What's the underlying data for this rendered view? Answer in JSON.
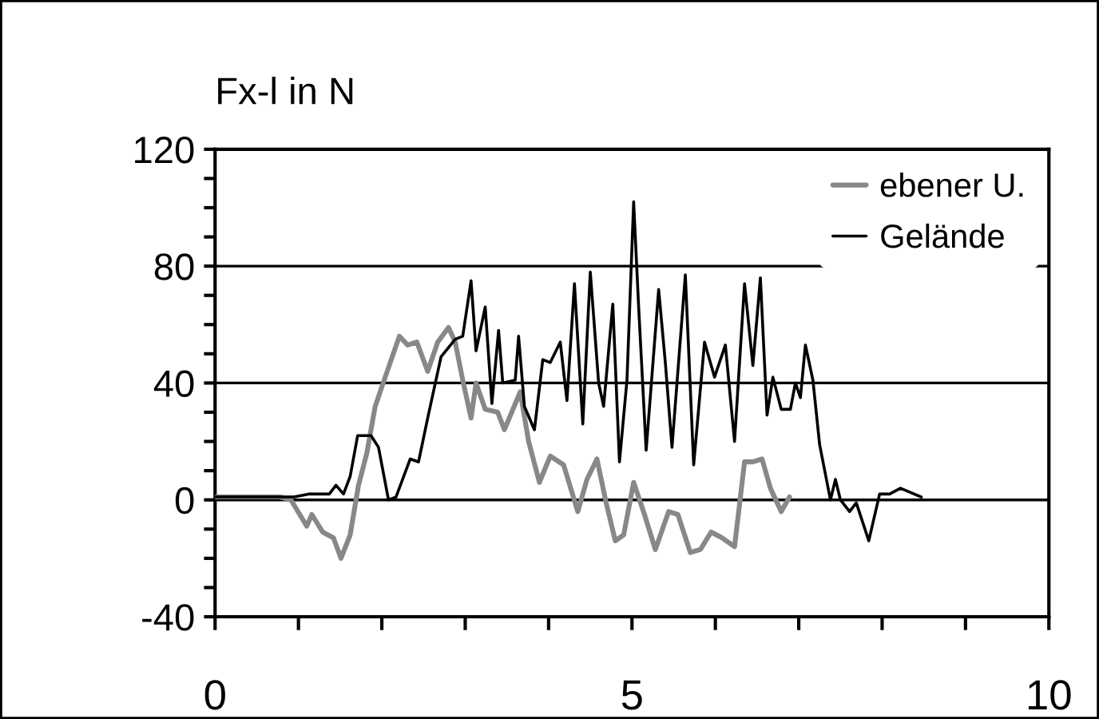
{
  "chart_data": {
    "type": "line",
    "ylabel": "Fx-l in N",
    "xlim": [
      0,
      10
    ],
    "xticks": [
      0,
      {
        "value": 1,
        "label": null
      },
      {
        "value": 2,
        "label": null
      },
      {
        "value": 3,
        "label": null
      },
      {
        "value": 4,
        "label": null
      },
      5,
      {
        "value": 6,
        "label": null
      },
      {
        "value": 7,
        "label": null
      },
      {
        "value": 8,
        "label": null
      },
      {
        "value": 9,
        "label": null
      },
      10
    ],
    "ylim": [
      -40,
      120
    ],
    "yticks": [
      -40,
      {
        "value": -30,
        "label": null
      },
      {
        "value": -20,
        "label": null
      },
      {
        "value": -10,
        "label": null
      },
      0,
      {
        "value": 10,
        "label": null
      },
      {
        "value": 20,
        "label": null
      },
      {
        "value": 30,
        "label": null
      },
      40,
      {
        "value": 50,
        "label": null
      },
      {
        "value": 60,
        "label": null
      },
      {
        "value": 70,
        "label": null
      },
      80,
      {
        "value": 90,
        "label": null
      },
      {
        "value": 100,
        "label": null
      },
      {
        "value": 110,
        "label": null
      },
      120
    ],
    "grid": "y",
    "legend": "top right",
    "series": [
      {
        "name": "ebener U.",
        "color": "#888888",
        "x": [
          0,
          0.78,
          0.91,
          1.1,
          1.16,
          1.29,
          1.42,
          1.51,
          1.62,
          1.72,
          1.82,
          1.92,
          2.04,
          2.21,
          2.31,
          2.42,
          2.55,
          2.67,
          2.8,
          2.88,
          2.97,
          3.07,
          3.13,
          3.24,
          3.39,
          3.47,
          3.66,
          3.76,
          3.89,
          4.02,
          4.18,
          4.35,
          4.46,
          4.58,
          4.69,
          4.8,
          4.9,
          5.02,
          5.15,
          5.28,
          5.44,
          5.55,
          5.7,
          5.82,
          5.95,
          6.08,
          6.23,
          6.35,
          6.45,
          6.56,
          6.66,
          6.79,
          6.89
        ],
        "values": [
          1,
          1,
          0,
          -9,
          -5,
          -11,
          -13,
          -20,
          -12,
          5,
          16,
          32,
          42,
          56,
          53,
          54,
          44,
          54,
          59,
          54,
          41,
          28,
          40,
          31,
          30,
          24,
          37,
          20,
          6,
          15,
          12,
          -4,
          7,
          14,
          -1,
          -14,
          -12,
          6,
          -5,
          -17,
          -4,
          -5,
          -18,
          -17,
          -11,
          -13,
          -16,
          13,
          13,
          14,
          4,
          -4,
          1
        ]
      },
      {
        "name": "Gelände",
        "color": "#000000",
        "x": [
          0,
          0.95,
          1.12,
          1.37,
          1.45,
          1.54,
          1.62,
          1.71,
          1.87,
          1.96,
          2.08,
          2.17,
          2.34,
          2.44,
          2.55,
          2.71,
          2.88,
          2.97,
          3.07,
          3.13,
          3.24,
          3.32,
          3.4,
          3.45,
          3.6,
          3.64,
          3.71,
          3.83,
          3.93,
          4.02,
          4.14,
          4.22,
          4.31,
          4.41,
          4.5,
          4.6,
          4.66,
          4.77,
          4.85,
          4.94,
          5.02,
          5.08,
          5.17,
          5.32,
          5.4,
          5.48,
          5.64,
          5.74,
          5.87,
          5.99,
          6.12,
          6.23,
          6.35,
          6.45,
          6.54,
          6.62,
          6.69,
          6.79,
          6.9,
          6.96,
          7.02,
          7.08,
          7.17,
          7.25,
          7.38,
          7.44,
          7.5,
          7.61,
          7.69,
          7.84,
          7.97,
          8.09,
          8.22,
          8.47
        ],
        "values": [
          1,
          1,
          2,
          2,
          5,
          2,
          8,
          22,
          22,
          18,
          0,
          1,
          14,
          13,
          28,
          49,
          55,
          56,
          75,
          51,
          66,
          33,
          58,
          40,
          41,
          56,
          32,
          24,
          48,
          47,
          54,
          34,
          74,
          26,
          78,
          40,
          32,
          67,
          13,
          41,
          102,
          66,
          17,
          72,
          47,
          18,
          77,
          12,
          54,
          42,
          53,
          20,
          74,
          46,
          76,
          29,
          42,
          31,
          31,
          40,
          35,
          53,
          41,
          19,
          0,
          7,
          0,
          -4,
          -1,
          -14,
          2,
          2,
          4,
          1
        ]
      }
    ]
  }
}
